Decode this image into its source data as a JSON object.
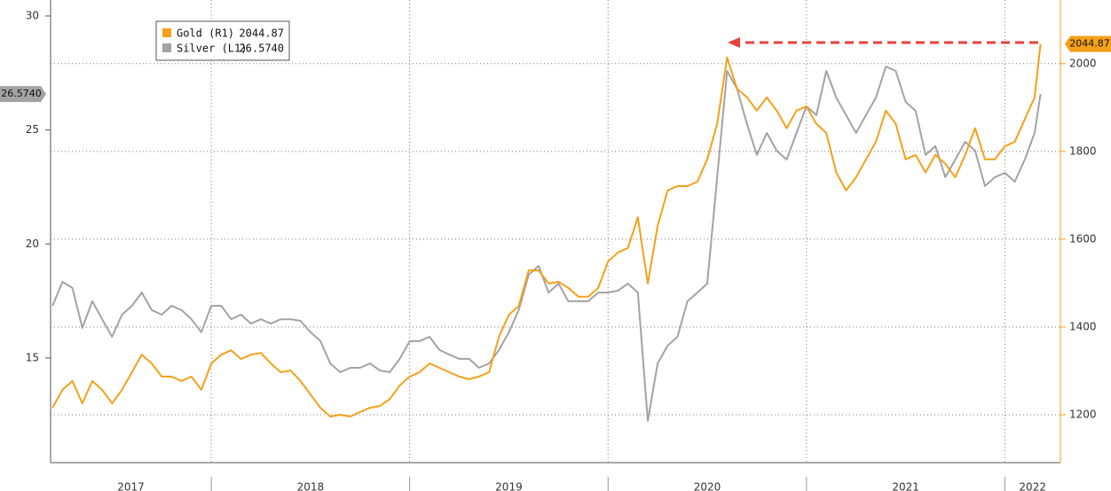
{
  "chart_data": {
    "type": "line",
    "x": [
      2017.2,
      2017.25,
      2017.3,
      2017.35,
      2017.4,
      2017.45,
      2017.5,
      2017.55,
      2017.6,
      2017.65,
      2017.7,
      2017.75,
      2017.8,
      2017.85,
      2017.9,
      2017.95,
      2018.0,
      2018.05,
      2018.1,
      2018.15,
      2018.2,
      2018.25,
      2018.3,
      2018.35,
      2018.4,
      2018.45,
      2018.5,
      2018.55,
      2018.6,
      2018.65,
      2018.7,
      2018.75,
      2018.8,
      2018.85,
      2018.9,
      2018.95,
      2019.0,
      2019.05,
      2019.1,
      2019.15,
      2019.2,
      2019.25,
      2019.3,
      2019.35,
      2019.4,
      2019.45,
      2019.5,
      2019.55,
      2019.6,
      2019.65,
      2019.7,
      2019.75,
      2019.8,
      2019.85,
      2019.9,
      2019.95,
      2020.0,
      2020.05,
      2020.1,
      2020.15,
      2020.2,
      2020.25,
      2020.3,
      2020.35,
      2020.4,
      2020.45,
      2020.5,
      2020.55,
      2020.6,
      2020.65,
      2020.7,
      2020.75,
      2020.8,
      2020.85,
      2020.9,
      2020.95,
      2021.0,
      2021.05,
      2021.1,
      2021.15,
      2021.2,
      2021.25,
      2021.3,
      2021.35,
      2021.4,
      2021.45,
      2021.5,
      2021.55,
      2021.6,
      2021.65,
      2021.7,
      2021.75,
      2021.8,
      2021.85,
      2021.9,
      2021.95,
      2022.0,
      2022.05,
      2022.1,
      2022.15,
      2022.18
    ],
    "series": [
      {
        "name": "Gold (R1)",
        "color": "#f5a01a",
        "axis": "y2",
        "last": 2044.87,
        "values": [
          1216,
          1257,
          1277,
          1226,
          1277,
          1257,
          1226,
          1257,
          1297,
          1337,
          1317,
          1287,
          1287,
          1277,
          1287,
          1257,
          1317,
          1337,
          1347,
          1327,
          1337,
          1341,
          1317,
          1297,
          1301,
          1277,
          1246,
          1216,
          1196,
          1200,
          1196,
          1206,
          1216,
          1220,
          1236,
          1267,
          1287,
          1297,
          1317,
          1307,
          1297,
          1287,
          1281,
          1287,
          1297,
          1378,
          1428,
          1448,
          1529,
          1529,
          1499,
          1503,
          1489,
          1469,
          1469,
          1489,
          1549,
          1570,
          1580,
          1650,
          1499,
          1630,
          1711,
          1721,
          1721,
          1731,
          1782,
          1863,
          2014,
          1943,
          1923,
          1893,
          1923,
          1893,
          1853,
          1893,
          1903,
          1863,
          1842,
          1752,
          1711,
          1741,
          1782,
          1822,
          1893,
          1863,
          1782,
          1792,
          1752,
          1792,
          1772,
          1741,
          1792,
          1853,
          1782,
          1782,
          1812,
          1822,
          1873,
          1923,
          2044.87
        ]
      },
      {
        "name": "Silver (L1)",
        "color": "#a3a3a3",
        "last": {
          "value": 26.574,
          "label": "26.5740"
        },
        "values": [
          17.29,
          18.34,
          18.07,
          16.32,
          17.49,
          16.7,
          15.93,
          16.9,
          17.29,
          17.87,
          17.1,
          16.9,
          17.29,
          17.1,
          16.7,
          16.13,
          17.29,
          17.29,
          16.7,
          16.9,
          16.51,
          16.7,
          16.51,
          16.7,
          16.7,
          16.63,
          16.13,
          15.74,
          14.76,
          14.38,
          14.57,
          14.57,
          14.76,
          14.45,
          14.38,
          14.96,
          15.74,
          15.74,
          15.93,
          15.35,
          15.15,
          14.96,
          14.96,
          14.57,
          14.76,
          15.35,
          16.13,
          17.1,
          18.65,
          19.04,
          17.87,
          18.26,
          17.49,
          17.49,
          17.49,
          17.87,
          17.87,
          17.95,
          18.26,
          17.87,
          12.24,
          14.76,
          15.54,
          15.93,
          17.49,
          17.87,
          18.26,
          22.93,
          27.59,
          26.81,
          25.26,
          23.9,
          24.87,
          24.09,
          23.7,
          24.87,
          26.04,
          25.65,
          27.59,
          26.42,
          25.65,
          24.87,
          25.65,
          26.42,
          27.78,
          27.59,
          26.23,
          25.84,
          23.9,
          24.29,
          22.93,
          23.7,
          24.48,
          24.09,
          22.54,
          22.93,
          23.12,
          22.73,
          23.7,
          24.87,
          26.574
        ]
      }
    ],
    "xlim": [
      2017.19,
      2022.28
    ],
    "xticks": [
      2017,
      2018,
      2019,
      2020,
      2021,
      2022
    ],
    "ylim": [
      10.41,
      30.7
    ],
    "yticks": [
      15,
      20,
      25,
      30
    ],
    "y2lim": [
      1091,
      2145
    ],
    "y2ticks": [
      1200,
      1400,
      1600,
      1800,
      2000
    ],
    "grid": true
  }
}
